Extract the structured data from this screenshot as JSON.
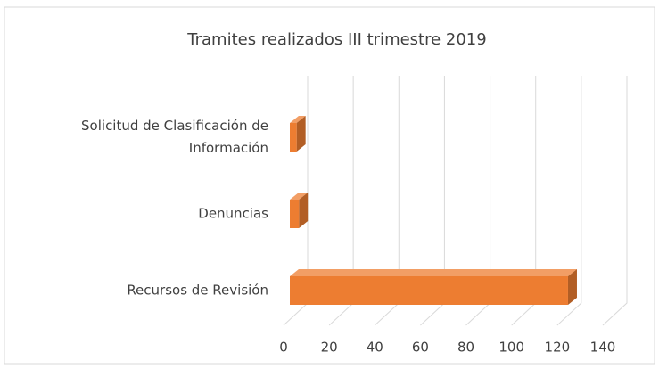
{
  "chart_data": {
    "type": "bar",
    "orientation": "horizontal",
    "title": "Tramites realizados III trimestre 2019",
    "categories": [
      "Solicitud de Clasificación de Información",
      "Denuncias",
      "Recursos de Revisión"
    ],
    "values": [
      3,
      4,
      122
    ],
    "color": "#ed7d31",
    "xlim": [
      0,
      140
    ],
    "xticks": [
      0,
      20,
      40,
      60,
      80,
      100,
      120,
      140
    ],
    "grid": true
  }
}
